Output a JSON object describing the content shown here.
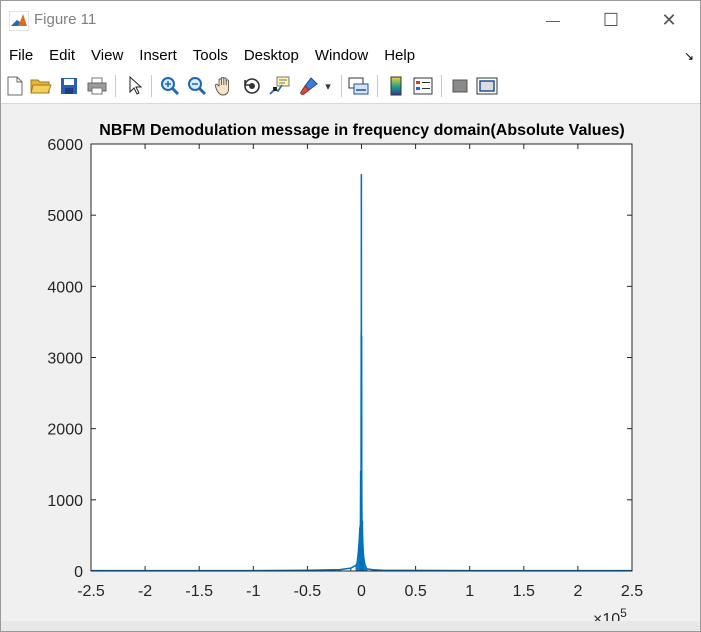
{
  "window": {
    "title": "Figure 11",
    "minimize_glyph": "—",
    "maximize_glyph": "☐",
    "close_glyph": "✕"
  },
  "menu": {
    "items": [
      "File",
      "Edit",
      "View",
      "Insert",
      "Tools",
      "Desktop",
      "Window",
      "Help"
    ],
    "dock_glyph": "↘"
  },
  "toolbar": {
    "buttons": [
      "new-figure-icon",
      "open-file-icon",
      "save-icon",
      "print-icon",
      "edit-plot-arrow-icon",
      "zoom-in-icon",
      "zoom-out-icon",
      "pan-hand-icon",
      "rotate-3d-icon",
      "data-cursor-icon",
      "brush-icon",
      "brush-dropdown-icon",
      "link-plot-icon",
      "insert-colorbar-icon",
      "insert-legend-icon",
      "hide-plot-tools-icon",
      "show-plot-tools-icon"
    ],
    "dropdown_glyph": "▾"
  },
  "colors": {
    "series": "#0072BD",
    "axes": "#262626",
    "background": "#f0f0f0",
    "plot_bg": "#ffffff"
  },
  "chart_data": {
    "type": "line",
    "title": "NBFM Demodulation message in frequency domain(Absolute Values)",
    "xlabel": "",
    "ylabel": "",
    "x_exponent_label": "×10",
    "x_exponent_power": "5",
    "xlim": [
      -2.5,
      2.5
    ],
    "ylim": [
      0,
      6000
    ],
    "xticks": [
      -2.5,
      -2,
      -1.5,
      -1,
      -0.5,
      0,
      0.5,
      1,
      1.5,
      2,
      2.5
    ],
    "xtick_labels": [
      "-2.5",
      "-2",
      "-1.5",
      "-1",
      "-0.5",
      "0",
      "0.5",
      "1",
      "1.5",
      "2",
      "2.5"
    ],
    "yticks": [
      0,
      1000,
      2000,
      3000,
      4000,
      5000,
      6000
    ],
    "ytick_labels": [
      "0",
      "1000",
      "2000",
      "3000",
      "4000",
      "5000",
      "6000"
    ],
    "grid": false,
    "series": [
      {
        "x": [
          -2.5,
          -1.0,
          -0.5,
          -0.2,
          -0.1,
          -0.05,
          -0.04,
          -0.03,
          -0.02,
          -0.015,
          -0.01,
          -0.008,
          -0.005,
          -0.003,
          -0.002,
          -0.001,
          0,
          0.001,
          0.002,
          0.003,
          0.005,
          0.008,
          0.01,
          0.015,
          0.02,
          0.03,
          0.04,
          0.05,
          0.1,
          0.2,
          0.5,
          1.0,
          2.5
        ],
        "y": [
          5,
          5,
          10,
          20,
          40,
          80,
          120,
          250,
          450,
          600,
          650,
          1400,
          500,
          3350,
          2100,
          5570,
          1500,
          3300,
          1800,
          1000,
          600,
          700,
          500,
          300,
          200,
          100,
          60,
          30,
          20,
          10,
          8,
          5,
          5
        ]
      }
    ]
  }
}
